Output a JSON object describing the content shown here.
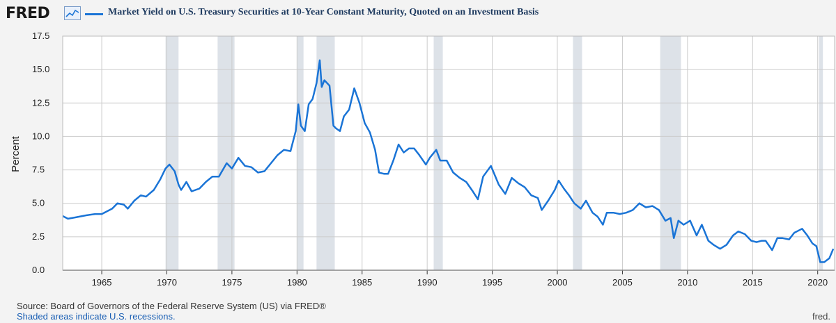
{
  "header": {
    "logo_text": "FRED",
    "logo_icon": "trend-chart-icon",
    "legend_label": "Market Yield on U.S. Treasury Securities at 10-Year Constant Maturity, Quoted on an Investment Basis"
  },
  "footer": {
    "source": "Source: Board of Governors of the Federal Reserve System (US) via FRED®",
    "note": "Shaded areas indicate U.S. recessions.",
    "credit": "fred."
  },
  "colors": {
    "line": "#1a74d6",
    "recession": "#dde2e8",
    "grid": "#cccccc",
    "plot_bg": "#ffffff",
    "page_bg": "#f3f3f3"
  },
  "chart_data": {
    "type": "line",
    "title": "Market Yield on U.S. Treasury Securities at 10-Year Constant Maturity, Quoted on an Investment Basis",
    "ylabel": "Percent",
    "xlabel": "",
    "xlim": [
      1962.0,
      2021.3
    ],
    "ylim": [
      0,
      17.5
    ],
    "yticks": [
      0.0,
      2.5,
      5.0,
      7.5,
      10.0,
      12.5,
      15.0,
      17.5
    ],
    "ytick_labels": [
      "0.0",
      "2.5",
      "5.0",
      "7.5",
      "10.0",
      "12.5",
      "15.0",
      "17.5"
    ],
    "xticks": [
      1965,
      1970,
      1975,
      1980,
      1985,
      1990,
      1995,
      2000,
      2005,
      2010,
      2015,
      2020
    ],
    "xtick_labels": [
      "1965",
      "1970",
      "1975",
      "1980",
      "1985",
      "1990",
      "1995",
      "2000",
      "2005",
      "2010",
      "2015",
      "2020"
    ],
    "grid": true,
    "recessions": [
      [
        1969.9,
        1970.9
      ],
      [
        1973.9,
        1975.2
      ],
      [
        1980.0,
        1980.5
      ],
      [
        1981.5,
        1982.9
      ],
      [
        1990.5,
        1991.2
      ],
      [
        2001.2,
        2001.9
      ],
      [
        2007.9,
        2009.5
      ],
      [
        2020.1,
        2020.4
      ]
    ],
    "series": [
      {
        "name": "Market Yield on U.S. Treasury Securities at 10-Year Constant Maturity",
        "x": [
          1962.0,
          1962.4,
          1963.0,
          1963.8,
          1964.5,
          1965.0,
          1965.8,
          1966.2,
          1966.7,
          1967.0,
          1967.5,
          1968.0,
          1968.4,
          1969.0,
          1969.5,
          1969.9,
          1970.2,
          1970.6,
          1970.9,
          1971.1,
          1971.5,
          1971.9,
          1972.5,
          1973.0,
          1973.5,
          1974.0,
          1974.6,
          1975.0,
          1975.5,
          1976.0,
          1976.5,
          1977.0,
          1977.5,
          1978.0,
          1978.5,
          1979.0,
          1979.5,
          1979.9,
          1980.1,
          1980.3,
          1980.6,
          1980.9,
          1981.2,
          1981.5,
          1981.75,
          1981.9,
          1982.1,
          1982.5,
          1982.8,
          1983.0,
          1983.3,
          1983.6,
          1984.0,
          1984.4,
          1984.8,
          1985.2,
          1985.6,
          1986.0,
          1986.3,
          1986.7,
          1987.0,
          1987.4,
          1987.8,
          1988.2,
          1988.6,
          1989.0,
          1989.4,
          1989.9,
          1990.2,
          1990.7,
          1991.0,
          1991.5,
          1992.0,
          1992.5,
          1993.0,
          1993.5,
          1993.9,
          1994.3,
          1994.9,
          1995.5,
          1996.0,
          1996.5,
          1997.0,
          1997.5,
          1998.0,
          1998.5,
          1998.8,
          1999.3,
          1999.8,
          2000.1,
          2000.5,
          2000.9,
          2001.3,
          2001.8,
          2002.2,
          2002.7,
          2003.1,
          2003.5,
          2003.8,
          2004.3,
          2004.8,
          2005.3,
          2005.8,
          2006.3,
          2006.8,
          2007.3,
          2007.8,
          2008.3,
          2008.7,
          2008.95,
          2009.3,
          2009.7,
          2010.2,
          2010.7,
          2011.1,
          2011.6,
          2012.0,
          2012.5,
          2013.0,
          2013.5,
          2013.9,
          2014.4,
          2014.9,
          2015.3,
          2015.7,
          2016.0,
          2016.5,
          2016.9,
          2017.3,
          2017.8,
          2018.2,
          2018.8,
          2019.2,
          2019.6,
          2019.9,
          2020.2,
          2020.5,
          2020.9,
          2021.2
        ],
        "values": [
          4.05,
          3.85,
          3.95,
          4.1,
          4.2,
          4.2,
          4.6,
          5.0,
          4.9,
          4.6,
          5.2,
          5.6,
          5.5,
          6.0,
          6.8,
          7.6,
          7.9,
          7.4,
          6.4,
          6.0,
          6.6,
          5.9,
          6.1,
          6.6,
          7.0,
          7.0,
          8.0,
          7.6,
          8.4,
          7.8,
          7.7,
          7.3,
          7.4,
          8.0,
          8.6,
          9.0,
          8.9,
          10.4,
          12.4,
          10.8,
          10.4,
          12.4,
          12.8,
          14.0,
          15.7,
          13.7,
          14.2,
          13.8,
          10.8,
          10.6,
          10.4,
          11.5,
          12.0,
          13.6,
          12.5,
          11.0,
          10.3,
          9.0,
          7.3,
          7.2,
          7.2,
          8.2,
          9.4,
          8.8,
          9.1,
          9.1,
          8.6,
          7.9,
          8.4,
          9.0,
          8.2,
          8.2,
          7.3,
          6.9,
          6.6,
          5.9,
          5.3,
          7.0,
          7.8,
          6.4,
          5.7,
          6.9,
          6.5,
          6.2,
          5.6,
          5.4,
          4.5,
          5.2,
          6.0,
          6.7,
          6.1,
          5.6,
          5.0,
          4.6,
          5.2,
          4.3,
          4.0,
          3.4,
          4.3,
          4.3,
          4.2,
          4.3,
          4.5,
          5.0,
          4.7,
          4.8,
          4.5,
          3.7,
          3.9,
          2.4,
          3.7,
          3.4,
          3.7,
          2.6,
          3.4,
          2.2,
          1.9,
          1.6,
          1.9,
          2.6,
          2.9,
          2.7,
          2.2,
          2.1,
          2.2,
          2.2,
          1.5,
          2.4,
          2.4,
          2.3,
          2.8,
          3.1,
          2.6,
          2.0,
          1.8,
          0.6,
          0.6,
          0.9,
          1.6
        ]
      }
    ]
  }
}
